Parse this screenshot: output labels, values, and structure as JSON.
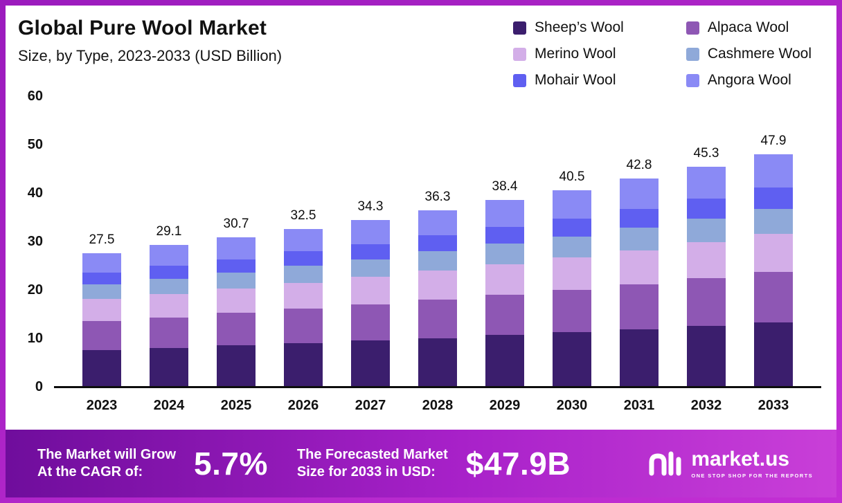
{
  "colors": {
    "frame_start": "#9b1bbd",
    "frame_end": "#c32fd4",
    "footer_start": "#6f0d9c",
    "footer_mid": "#a821c9",
    "footer_end": "#c93fd8"
  },
  "chart_data": {
    "type": "bar",
    "stacked": true,
    "title": "Global Pure Wool Market",
    "subtitle": "Size, by Type, 2023-2033 (USD Billion)",
    "xlabel": "",
    "ylabel": "",
    "ylim": [
      0,
      60
    ],
    "yticks": [
      0,
      10,
      20,
      30,
      40,
      50,
      60
    ],
    "grid": false,
    "legend_position": "top-right",
    "categories": [
      "2023",
      "2024",
      "2025",
      "2026",
      "2027",
      "2028",
      "2029",
      "2030",
      "2031",
      "2032",
      "2033"
    ],
    "totals": [
      27.5,
      29.1,
      30.7,
      32.5,
      34.3,
      36.3,
      38.4,
      40.5,
      42.8,
      45.3,
      47.9
    ],
    "series": [
      {
        "name": "Sheep’s Wool",
        "color": "#3b1e6d",
        "values": [
          7.5,
          7.9,
          8.4,
          8.9,
          9.4,
          9.9,
          10.5,
          11.1,
          11.7,
          12.4,
          13.1
        ]
      },
      {
        "name": "Alpaca Wool",
        "color": "#8e57b4",
        "values": [
          6.0,
          6.3,
          6.7,
          7.1,
          7.5,
          7.9,
          8.4,
          8.8,
          9.3,
          9.9,
          10.4
        ]
      },
      {
        "name": "Merino Wool",
        "color": "#d3aee8",
        "values": [
          4.5,
          4.8,
          5.0,
          5.3,
          5.6,
          6.0,
          6.3,
          6.6,
          7.0,
          7.4,
          7.9
        ]
      },
      {
        "name": "Cashmere Wool",
        "color": "#8fa9d9",
        "values": [
          3.0,
          3.2,
          3.3,
          3.5,
          3.7,
          4.0,
          4.2,
          4.4,
          4.7,
          4.9,
          5.2
        ]
      },
      {
        "name": "Mohair Wool",
        "color": "#5f5ff1",
        "values": [
          2.5,
          2.6,
          2.8,
          3.0,
          3.1,
          3.3,
          3.5,
          3.7,
          3.9,
          4.1,
          4.4
        ]
      },
      {
        "name": "Angora Wool",
        "color": "#8a8af5",
        "values": [
          4.0,
          4.3,
          4.5,
          4.7,
          5.0,
          5.2,
          5.5,
          5.9,
          6.2,
          6.6,
          6.9
        ]
      }
    ]
  },
  "footer": {
    "cagr": {
      "line1": "The Market will Grow",
      "line2": "At the CAGR of:",
      "value": "5.7%"
    },
    "forecast": {
      "line1": "The Forecasted Market",
      "line2": "Size for 2033 in USD:",
      "value": "$47.9B"
    },
    "brand": {
      "name": "market.us",
      "tagline": "ONE STOP SHOP FOR THE REPORTS"
    }
  }
}
